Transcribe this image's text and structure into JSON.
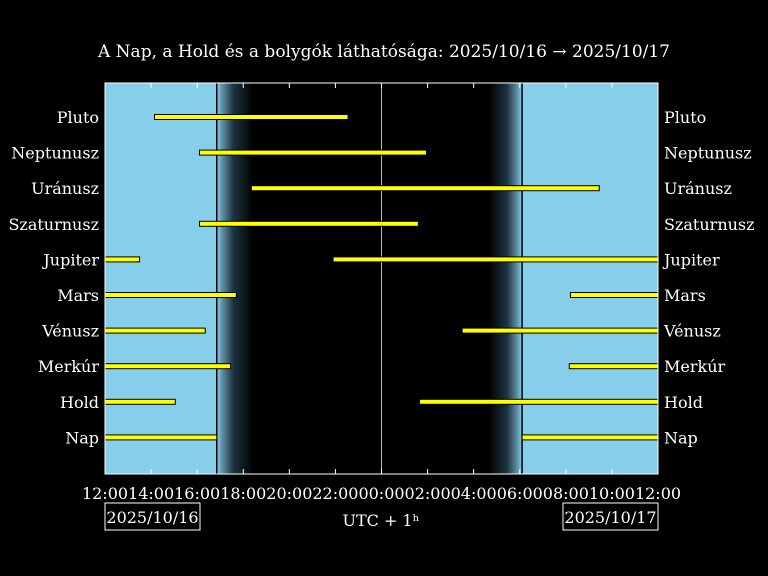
{
  "chart_data": {
    "type": "gantt",
    "title": "A Nap, a Hold és a bolygók láthatósága: 2025/10/16 → 2025/10/17",
    "xlabel": "UTC + 1ʰ",
    "xlim": [
      12,
      36
    ],
    "x_ticks": [
      {
        "value": 12,
        "label": "12:00"
      },
      {
        "value": 14,
        "label": "14:00"
      },
      {
        "value": 16,
        "label": "16:00"
      },
      {
        "value": 18,
        "label": "18:00"
      },
      {
        "value": 20,
        "label": "20:00"
      },
      {
        "value": 22,
        "label": "22:00"
      },
      {
        "value": 24,
        "label": "00:00"
      },
      {
        "value": 26,
        "label": "02:00"
      },
      {
        "value": 28,
        "label": "04:00"
      },
      {
        "value": 30,
        "label": "06:00"
      },
      {
        "value": 32,
        "label": "08:00"
      },
      {
        "value": 34,
        "label": "10:00"
      },
      {
        "value": 36,
        "label": "12:00"
      }
    ],
    "date_left": "2025/10/16",
    "date_right": "2025/10/17",
    "midnight": 24,
    "daylight": [
      [
        12,
        16.85
      ],
      [
        30.1,
        36
      ]
    ],
    "twilight": [
      [
        16.85,
        18.45
      ],
      [
        28.65,
        30.1
      ]
    ],
    "bodies": [
      {
        "name": "Pluto",
        "intervals": [
          [
            14.15,
            22.55
          ]
        ]
      },
      {
        "name": "Neptunusz",
        "intervals": [
          [
            16.1,
            25.95
          ]
        ]
      },
      {
        "name": "Uránusz",
        "intervals": [
          [
            18.35,
            33.45
          ]
        ]
      },
      {
        "name": "Szaturnusz",
        "intervals": [
          [
            16.1,
            25.6
          ]
        ]
      },
      {
        "name": "Jupiter",
        "intervals": [
          [
            12,
            13.5
          ],
          [
            21.9,
            36
          ]
        ]
      },
      {
        "name": "Mars",
        "intervals": [
          [
            12,
            17.7
          ],
          [
            32.2,
            36
          ]
        ]
      },
      {
        "name": "Vénusz",
        "intervals": [
          [
            12,
            16.35
          ],
          [
            27.5,
            36
          ]
        ]
      },
      {
        "name": "Merkúr",
        "intervals": [
          [
            12,
            17.45
          ],
          [
            32.15,
            36
          ]
        ]
      },
      {
        "name": "Hold",
        "intervals": [
          [
            12,
            15.05
          ],
          [
            25.65,
            36
          ]
        ]
      },
      {
        "name": "Nap",
        "intervals": [
          [
            12,
            16.85
          ],
          [
            30.1,
            36
          ]
        ]
      }
    ],
    "colors": {
      "daylight": "#87ceeb",
      "night": "#000000",
      "bar_fill": "#ffff00",
      "bar_edge": "#000000",
      "text": "#ffffff"
    }
  }
}
